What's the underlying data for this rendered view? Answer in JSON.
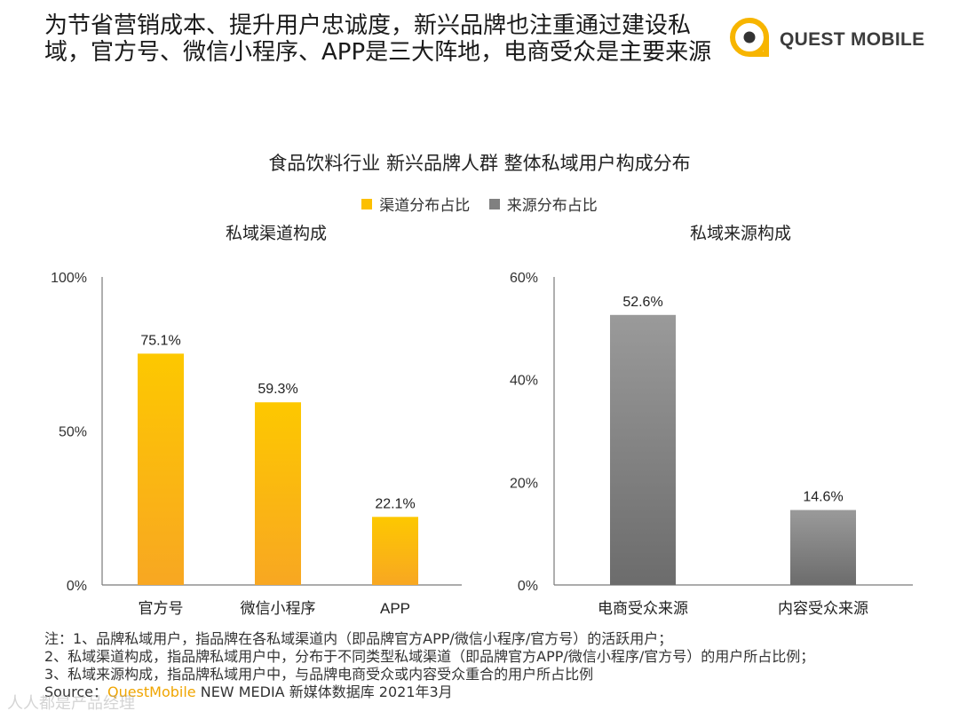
{
  "headline": "为节省营销成本、提升用户忠诚度，新兴品牌也注重通过建设私域，官方号、微信小程序、APP是三大阵地，电商受众是主要来源",
  "logo": {
    "text": "QUEST MOBILE"
  },
  "colors": {
    "channel": "#fcbf00",
    "channel_dark": "#f7a521",
    "source": "#8a8a8a",
    "source_dark": "#6e6e6e",
    "brand": "#f0a500"
  },
  "chart_data": [
    {
      "type": "bar",
      "title": "私域渠道构成",
      "series_name": "渠道分布占比",
      "categories": [
        "官方号",
        "微信小程序",
        "APP"
      ],
      "values": [
        75.1,
        59.3,
        22.1
      ],
      "labels": [
        "75.1%",
        "59.3%",
        "22.1%"
      ],
      "ylim": [
        0,
        100
      ],
      "yticks": [
        "0%",
        "50%",
        "100%"
      ],
      "ytick_values": [
        0,
        50,
        100
      ]
    },
    {
      "type": "bar",
      "title": "私域来源构成",
      "series_name": "来源分布占比",
      "categories": [
        "电商受众来源",
        "内容受众来源"
      ],
      "values": [
        52.6,
        14.6
      ],
      "labels": [
        "52.6%",
        "14.6%"
      ],
      "ylim": [
        0,
        60
      ],
      "yticks": [
        "0%",
        "20%",
        "40%",
        "60%"
      ],
      "ytick_values": [
        0,
        20,
        40,
        60
      ]
    }
  ],
  "main_title": "食品饮料行业 新兴品牌人群 整体私域用户构成分布",
  "legend": [
    {
      "label": "渠道分布占比",
      "color": "#fcbf00"
    },
    {
      "label": "来源分布占比",
      "color": "#808080"
    }
  ],
  "notes": [
    "注：1、品牌私域用户，指品牌在各私域渠道内（即品牌官方APP/微信小程序/官方号）的活跃用户；",
    "2、私域渠道构成，指品牌私域用户中，分布于不同类型私域渠道（即品牌官方APP/微信小程序/官方号）的用户所占比例；",
    "3、私域来源构成，指品牌私域用户中，与品牌电商受众或内容受众重合的用户所占比例"
  ],
  "source": {
    "prefix": "Source：",
    "brand": "QuestMobile",
    "rest": " NEW MEDIA 新媒体数据库 2021年3月"
  },
  "watermark": "人人都是产品经理"
}
